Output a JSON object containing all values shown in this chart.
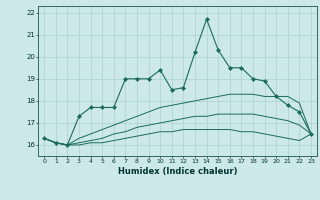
{
  "title": "",
  "xlabel": "Humidex (Indice chaleur)",
  "xlim": [
    -0.5,
    23.5
  ],
  "ylim": [
    15.5,
    22.3
  ],
  "xticks": [
    0,
    1,
    2,
    3,
    4,
    5,
    6,
    7,
    8,
    9,
    10,
    11,
    12,
    13,
    14,
    15,
    16,
    17,
    18,
    19,
    20,
    21,
    22,
    23
  ],
  "yticks": [
    16,
    17,
    18,
    19,
    20,
    21,
    22
  ],
  "bg_color": "#cce8e8",
  "grid_color": "#aad0d0",
  "line_color": "#1a6b5a",
  "series": {
    "main": {
      "x": [
        0,
        1,
        2,
        3,
        4,
        5,
        6,
        7,
        8,
        9,
        10,
        11,
        12,
        13,
        14,
        15,
        16,
        17,
        18,
        19,
        20,
        21,
        22,
        23
      ],
      "y": [
        16.3,
        16.1,
        16.0,
        17.3,
        17.7,
        17.7,
        17.7,
        19.0,
        19.0,
        19.0,
        19.4,
        18.5,
        18.6,
        20.2,
        21.7,
        20.3,
        19.5,
        19.5,
        19.0,
        18.9,
        18.2,
        17.8,
        17.5,
        16.5
      ]
    },
    "low1": {
      "x": [
        0,
        1,
        2,
        3,
        4,
        5,
        6,
        7,
        8,
        9,
        10,
        11,
        12,
        13,
        14,
        15,
        16,
        17,
        18,
        19,
        20,
        21,
        22,
        23
      ],
      "y": [
        16.3,
        16.1,
        16.0,
        16.3,
        16.5,
        16.7,
        16.9,
        17.1,
        17.3,
        17.5,
        17.7,
        17.8,
        17.9,
        18.0,
        18.1,
        18.2,
        18.3,
        18.3,
        18.3,
        18.2,
        18.2,
        18.2,
        17.9,
        16.5
      ]
    },
    "low2": {
      "x": [
        0,
        1,
        2,
        3,
        4,
        5,
        6,
        7,
        8,
        9,
        10,
        11,
        12,
        13,
        14,
        15,
        16,
        17,
        18,
        19,
        20,
        21,
        22,
        23
      ],
      "y": [
        16.3,
        16.1,
        16.0,
        16.1,
        16.2,
        16.3,
        16.5,
        16.6,
        16.8,
        16.9,
        17.0,
        17.1,
        17.2,
        17.3,
        17.3,
        17.4,
        17.4,
        17.4,
        17.4,
        17.3,
        17.2,
        17.1,
        16.9,
        16.5
      ]
    },
    "low3": {
      "x": [
        0,
        1,
        2,
        3,
        4,
        5,
        6,
        7,
        8,
        9,
        10,
        11,
        12,
        13,
        14,
        15,
        16,
        17,
        18,
        19,
        20,
        21,
        22,
        23
      ],
      "y": [
        16.3,
        16.1,
        16.0,
        16.0,
        16.1,
        16.1,
        16.2,
        16.3,
        16.4,
        16.5,
        16.6,
        16.6,
        16.7,
        16.7,
        16.7,
        16.7,
        16.7,
        16.6,
        16.6,
        16.5,
        16.4,
        16.3,
        16.2,
        16.5
      ]
    }
  }
}
